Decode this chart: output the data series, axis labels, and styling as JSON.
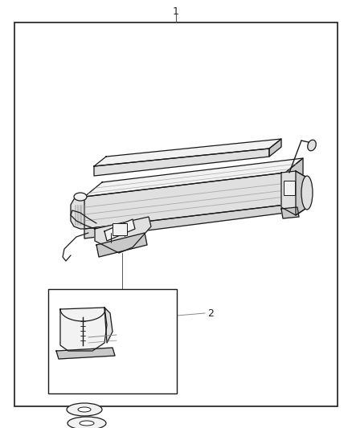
{
  "background_color": "#ffffff",
  "border_color": "#1a1a1a",
  "line_color": "#1a1a1a",
  "line_color_light": "#888888",
  "fill_light": "#f2f2f2",
  "fill_mid": "#e0e0e0",
  "fill_dark": "#c8c8c8",
  "label1_text": "1",
  "label2_text": "2",
  "figsize": [
    4.38,
    5.33
  ],
  "dpi": 100
}
